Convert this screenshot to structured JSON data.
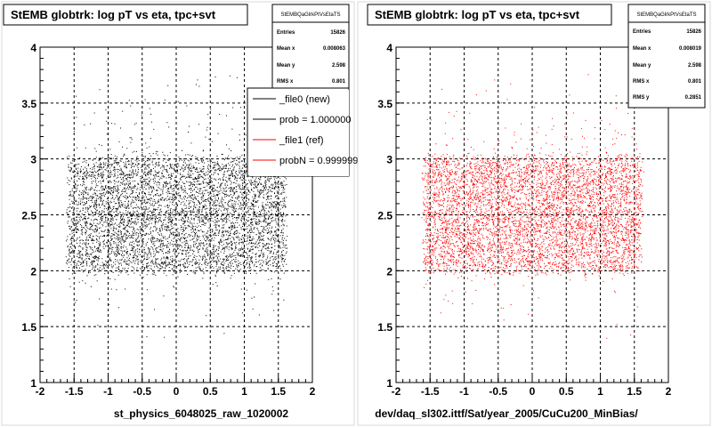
{
  "footer_text": "",
  "colors": {
    "series0": "#000000",
    "series1": "#ff0000",
    "grid": "#000000"
  },
  "chart_data": [
    {
      "type": "scatter",
      "title": "StEMB globtrk: log pT vs eta, tpc+svt",
      "xlabel": "st_physics_6048025_raw_1020002",
      "ylabel": "",
      "xlim": [
        -2,
        2
      ],
      "ylim": [
        1,
        4
      ],
      "xticks": [
        "-2",
        "-1.5",
        "-1",
        "-0.5",
        "0",
        "0.5",
        "1",
        "1.5",
        "2"
      ],
      "yticks": [
        "1",
        "1.5",
        "2",
        "2.5",
        "3",
        "3.5",
        "4"
      ],
      "grid": true,
      "series_color": "#000000",
      "distribution": {
        "x_range": [
          -1.6,
          1.6
        ],
        "y_core": [
          2.0,
          3.0
        ],
        "y_mean": 2.598,
        "entries": 15826
      },
      "stats": {
        "header": "StEMBQaGlrkPtVsEtaTS",
        "rows": [
          {
            "label": "Entries",
            "value": "15826"
          },
          {
            "label": "Mean x",
            "value": "0.008063"
          },
          {
            "label": "Mean y",
            "value": "2.598"
          },
          {
            "label": "RMS x",
            "value": "0.801"
          }
        ]
      },
      "legend": [
        {
          "label": "_file0 (new)",
          "color": "#000000"
        },
        {
          "label": "prob = 1.000000",
          "color": "#000000"
        },
        {
          "label": "_file1 (ref)",
          "color": "#ff0000"
        },
        {
          "label": "probN = 0.999999",
          "color": "#ff0000"
        }
      ]
    },
    {
      "type": "scatter",
      "title": "StEMB globtrk: log pT vs eta, tpc+svt",
      "xlabel": "dev/daq_sl302.ittf/Sat/year_2005/CuCu200_MinBias/",
      "ylabel": "",
      "xlim": [
        -2,
        2
      ],
      "ylim": [
        1,
        4
      ],
      "xticks": [
        "-2",
        "-1.5",
        "-1",
        "-0.5",
        "0",
        "0.5",
        "1",
        "1.5",
        "2"
      ],
      "yticks": [
        "1",
        "1.5",
        "2",
        "2.5",
        "3",
        "3.5",
        "4"
      ],
      "grid": true,
      "series_color": "#ff0000",
      "distribution": {
        "x_range": [
          -1.6,
          1.6
        ],
        "y_core": [
          2.0,
          3.0
        ],
        "y_mean": 2.598,
        "entries": 15826
      },
      "stats": {
        "header": "StEMBQaGlrkPtVsEtaTS",
        "rows": [
          {
            "label": "Entries",
            "value": "15826"
          },
          {
            "label": "Mean x",
            "value": "0.008019"
          },
          {
            "label": "Mean y",
            "value": "2.598"
          },
          {
            "label": "RMS x",
            "value": "0.801"
          },
          {
            "label": "RMS y",
            "value": "0.2851"
          }
        ]
      }
    }
  ]
}
